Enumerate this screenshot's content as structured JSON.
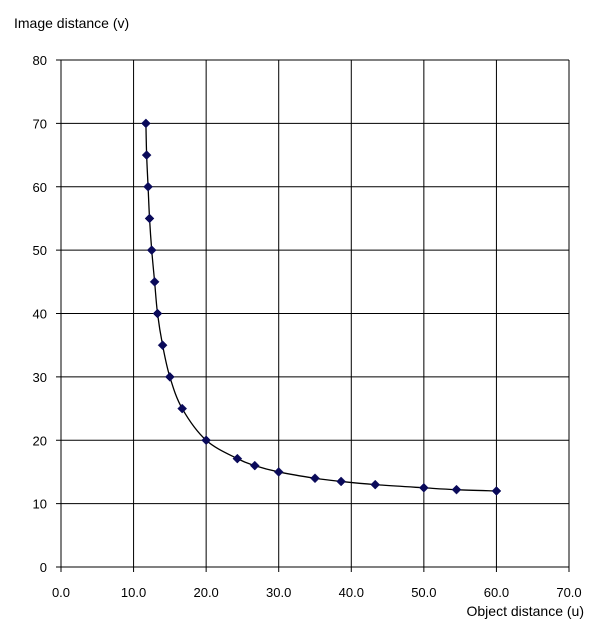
{
  "chart_data": {
    "type": "scatter",
    "xlabel": "Object distance (u)",
    "ylabel": "Image distance (v)",
    "xlim": [
      0,
      70
    ],
    "ylim": [
      0,
      80
    ],
    "x_ticks": [
      "0.0",
      "10.0",
      "20.0",
      "30.0",
      "40.0",
      "50.0",
      "60.0",
      "70.0"
    ],
    "y_ticks": [
      "0",
      "10",
      "20",
      "30",
      "40",
      "50",
      "60",
      "70",
      "80"
    ],
    "grid": true,
    "legend": "none",
    "colors": {
      "marker": "#0a0a5a",
      "line": "#000000",
      "grid": "#000000"
    },
    "series": [
      {
        "x": [
          11.7,
          11.8,
          12.0,
          12.2,
          12.5,
          12.9,
          13.3,
          14.0,
          15.0,
          16.7,
          20.0,
          24.3,
          26.7,
          30.0,
          35.0,
          38.6,
          43.3,
          50.0,
          54.5,
          60.0
        ],
        "y": [
          70,
          65,
          60,
          55,
          50,
          45,
          40,
          35,
          30,
          25,
          20,
          17.1,
          16,
          15,
          14,
          13.5,
          13,
          12.5,
          12.2,
          12
        ]
      }
    ]
  }
}
